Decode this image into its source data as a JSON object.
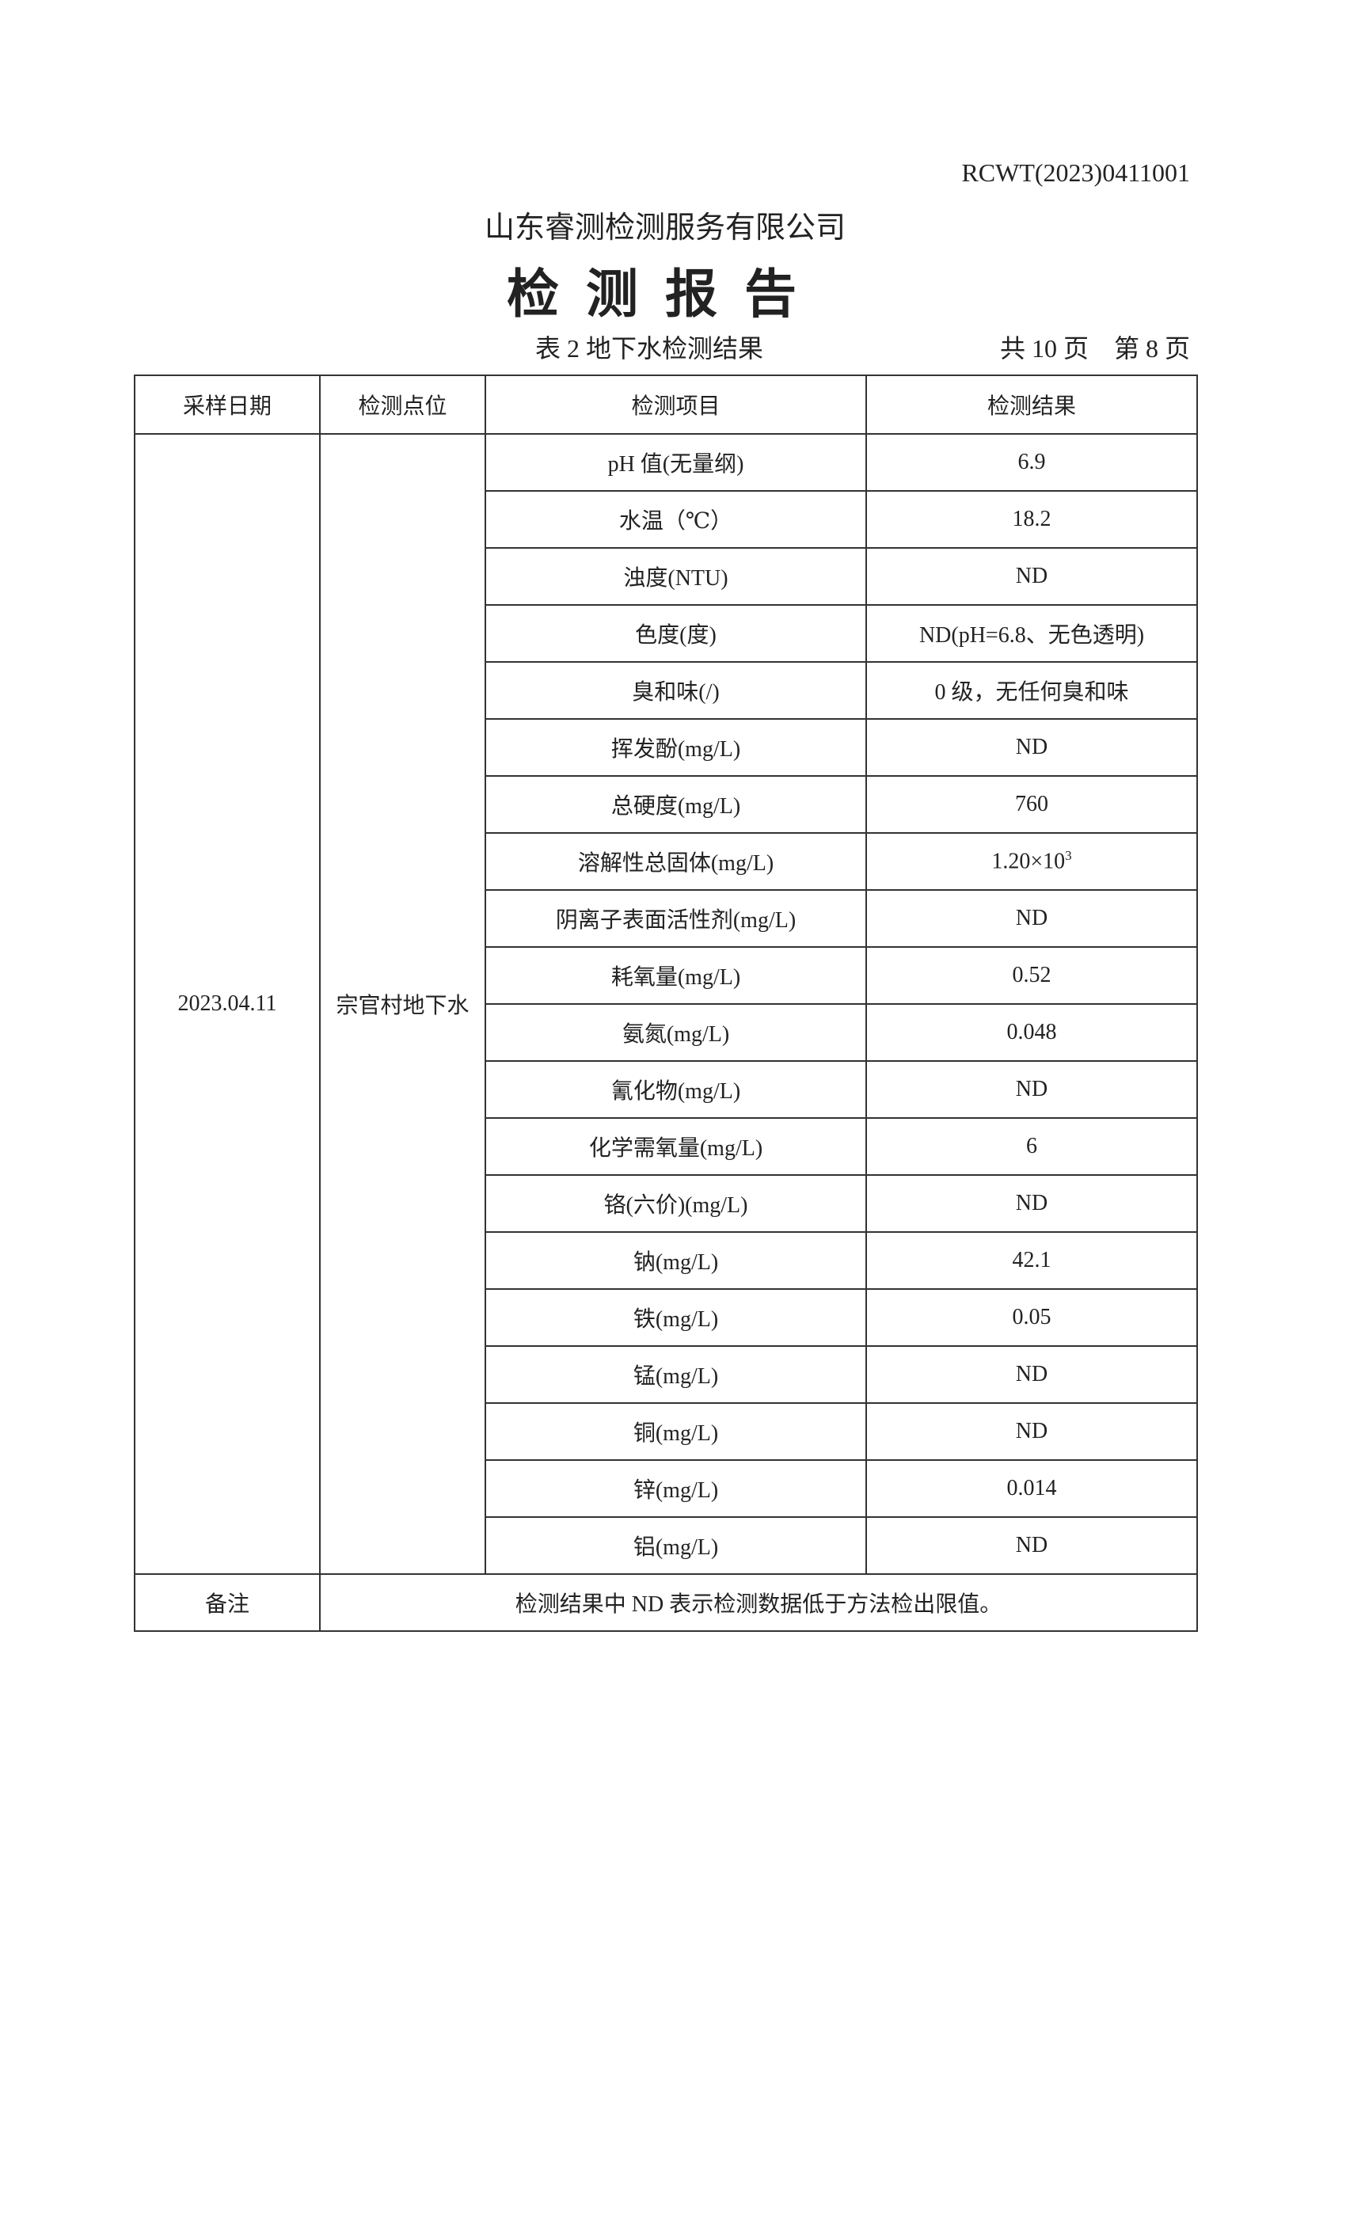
{
  "report_number": "RCWT(2023)0411001",
  "company": "山东睿测检测服务有限公司",
  "title": "检测报告",
  "table_caption": "表 2  地下水检测结果",
  "page_info": "共 10 页    第 8 页",
  "table": {
    "headers": [
      "采样日期",
      "检测点位",
      "检测项目",
      "检测结果"
    ],
    "sampling_date": "2023.04.11",
    "location": "宗官村地下水",
    "rows": [
      {
        "item": "pH 值(无量纲)",
        "result": "6.9"
      },
      {
        "item": "水温（℃）",
        "result": "18.2"
      },
      {
        "item": "浊度(NTU)",
        "result": "ND"
      },
      {
        "item": "色度(度)",
        "result": "ND(pH=6.8、无色透明)"
      },
      {
        "item": "臭和味(/)",
        "result": "0 级，无任何臭和味"
      },
      {
        "item": "挥发酚(mg/L)",
        "result": "ND"
      },
      {
        "item": "总硬度(mg/L)",
        "result": "760"
      },
      {
        "item": "溶解性总固体(mg/L)",
        "result": "1.20×10",
        "result_sup": "3"
      },
      {
        "item": "阴离子表面活性剂(mg/L)",
        "result": "ND"
      },
      {
        "item": "耗氧量(mg/L)",
        "result": "0.52"
      },
      {
        "item": "氨氮(mg/L)",
        "result": "0.048"
      },
      {
        "item": "氰化物(mg/L)",
        "result": "ND"
      },
      {
        "item": "化学需氧量(mg/L)",
        "result": "6"
      },
      {
        "item": "铬(六价)(mg/L)",
        "result": "ND"
      },
      {
        "item": "钠(mg/L)",
        "result": "42.1"
      },
      {
        "item": "铁(mg/L)",
        "result": "0.05"
      },
      {
        "item": "锰(mg/L)",
        "result": "ND"
      },
      {
        "item": "铜(mg/L)",
        "result": "ND"
      },
      {
        "item": "锌(mg/L)",
        "result": "0.014"
      },
      {
        "item": "铝(mg/L)",
        "result": "ND"
      }
    ],
    "remark_label": "备注",
    "remark_text": "检测结果中 ND 表示检测数据低于方法检出限值。"
  }
}
